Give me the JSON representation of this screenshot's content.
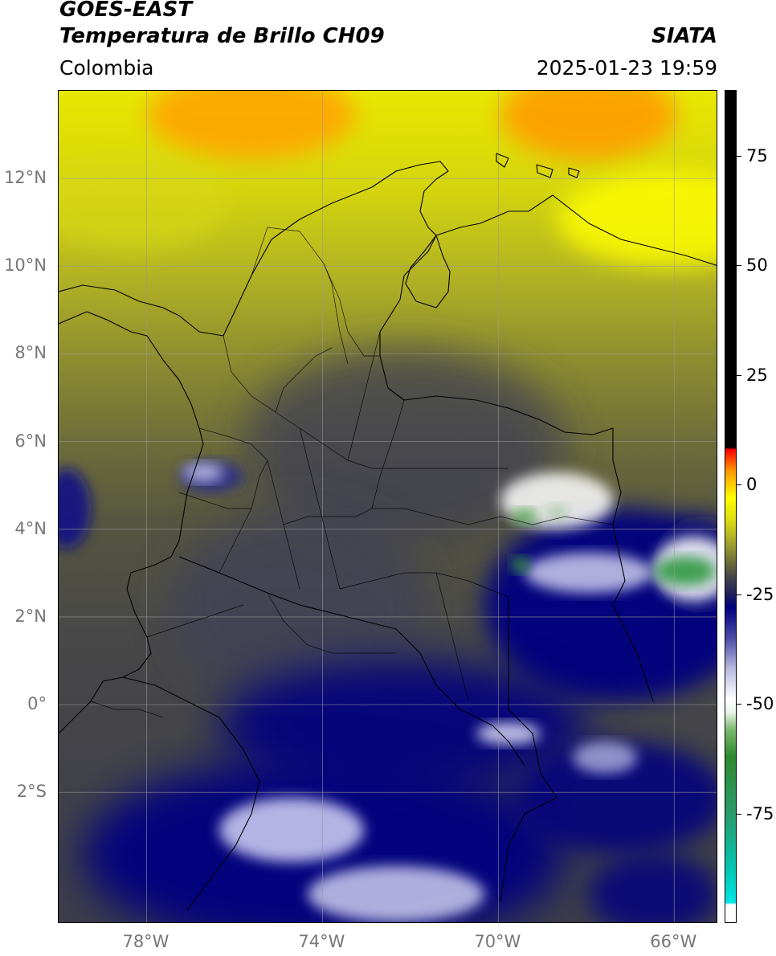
{
  "header": {
    "title_line1": "GOES-EAST",
    "title_line2": "Temperatura de Brillo CH09",
    "region": "Colombia",
    "brand": "SIATA",
    "datetime": "2025-01-23 19:59"
  },
  "map": {
    "extent": {
      "lon_min": -80.0,
      "lon_max": -65.0,
      "lat_min": -5.0,
      "lat_max": 14.0
    },
    "lat_ticks": [
      {
        "value": 12,
        "label": "12°N"
      },
      {
        "value": 10,
        "label": "10°N"
      },
      {
        "value": 8,
        "label": "8°N"
      },
      {
        "value": 6,
        "label": "6°N"
      },
      {
        "value": 4,
        "label": "4°N"
      },
      {
        "value": 2,
        "label": "2°N"
      },
      {
        "value": 0,
        "label": "0°"
      },
      {
        "value": -2,
        "label": "2°S"
      }
    ],
    "lon_ticks": [
      {
        "value": -78,
        "label": "78°W"
      },
      {
        "value": -74,
        "label": "74°W"
      },
      {
        "value": -70,
        "label": "70°W"
      },
      {
        "value": -66,
        "label": "66°W"
      }
    ],
    "grid": true
  },
  "colorbar": {
    "min": -100,
    "max": 90,
    "ticks": [
      {
        "value": 75,
        "label": "75"
      },
      {
        "value": 50,
        "label": "50"
      },
      {
        "value": 25,
        "label": "25"
      },
      {
        "value": 0,
        "label": "0"
      },
      {
        "value": -25,
        "label": "-25"
      },
      {
        "value": -50,
        "label": "-50"
      },
      {
        "value": -75,
        "label": "-75"
      }
    ],
    "stops": [
      {
        "value": -100,
        "color": "#ffffff"
      },
      {
        "value": -96,
        "color": "#ffffff"
      },
      {
        "value": -95.5,
        "color": "#00e5e5"
      },
      {
        "value": -88,
        "color": "#00c8b4"
      },
      {
        "value": -75,
        "color": "#2a9a6a"
      },
      {
        "value": -62,
        "color": "#2f8a2f"
      },
      {
        "value": -56,
        "color": "#7aba6e"
      },
      {
        "value": -52,
        "color": "#eaf4ea"
      },
      {
        "value": -49,
        "color": "#ffffff"
      },
      {
        "value": -42,
        "color": "#b8b8e0"
      },
      {
        "value": -35,
        "color": "#4a4aa8"
      },
      {
        "value": -28,
        "color": "#000080"
      },
      {
        "value": -25,
        "color": "#20205a"
      },
      {
        "value": -22,
        "color": "#3c3c50"
      },
      {
        "value": -18,
        "color": "#6a6a3a"
      },
      {
        "value": -13,
        "color": "#a6a62a"
      },
      {
        "value": -8,
        "color": "#dede10"
      },
      {
        "value": -3,
        "color": "#ffff00"
      },
      {
        "value": 3,
        "color": "#ff9a00"
      },
      {
        "value": 7,
        "color": "#ff2200"
      },
      {
        "value": 8,
        "color": "#ff0000"
      },
      {
        "value": 8.5,
        "color": "#000000"
      },
      {
        "value": 90,
        "color": "#000000"
      }
    ]
  }
}
